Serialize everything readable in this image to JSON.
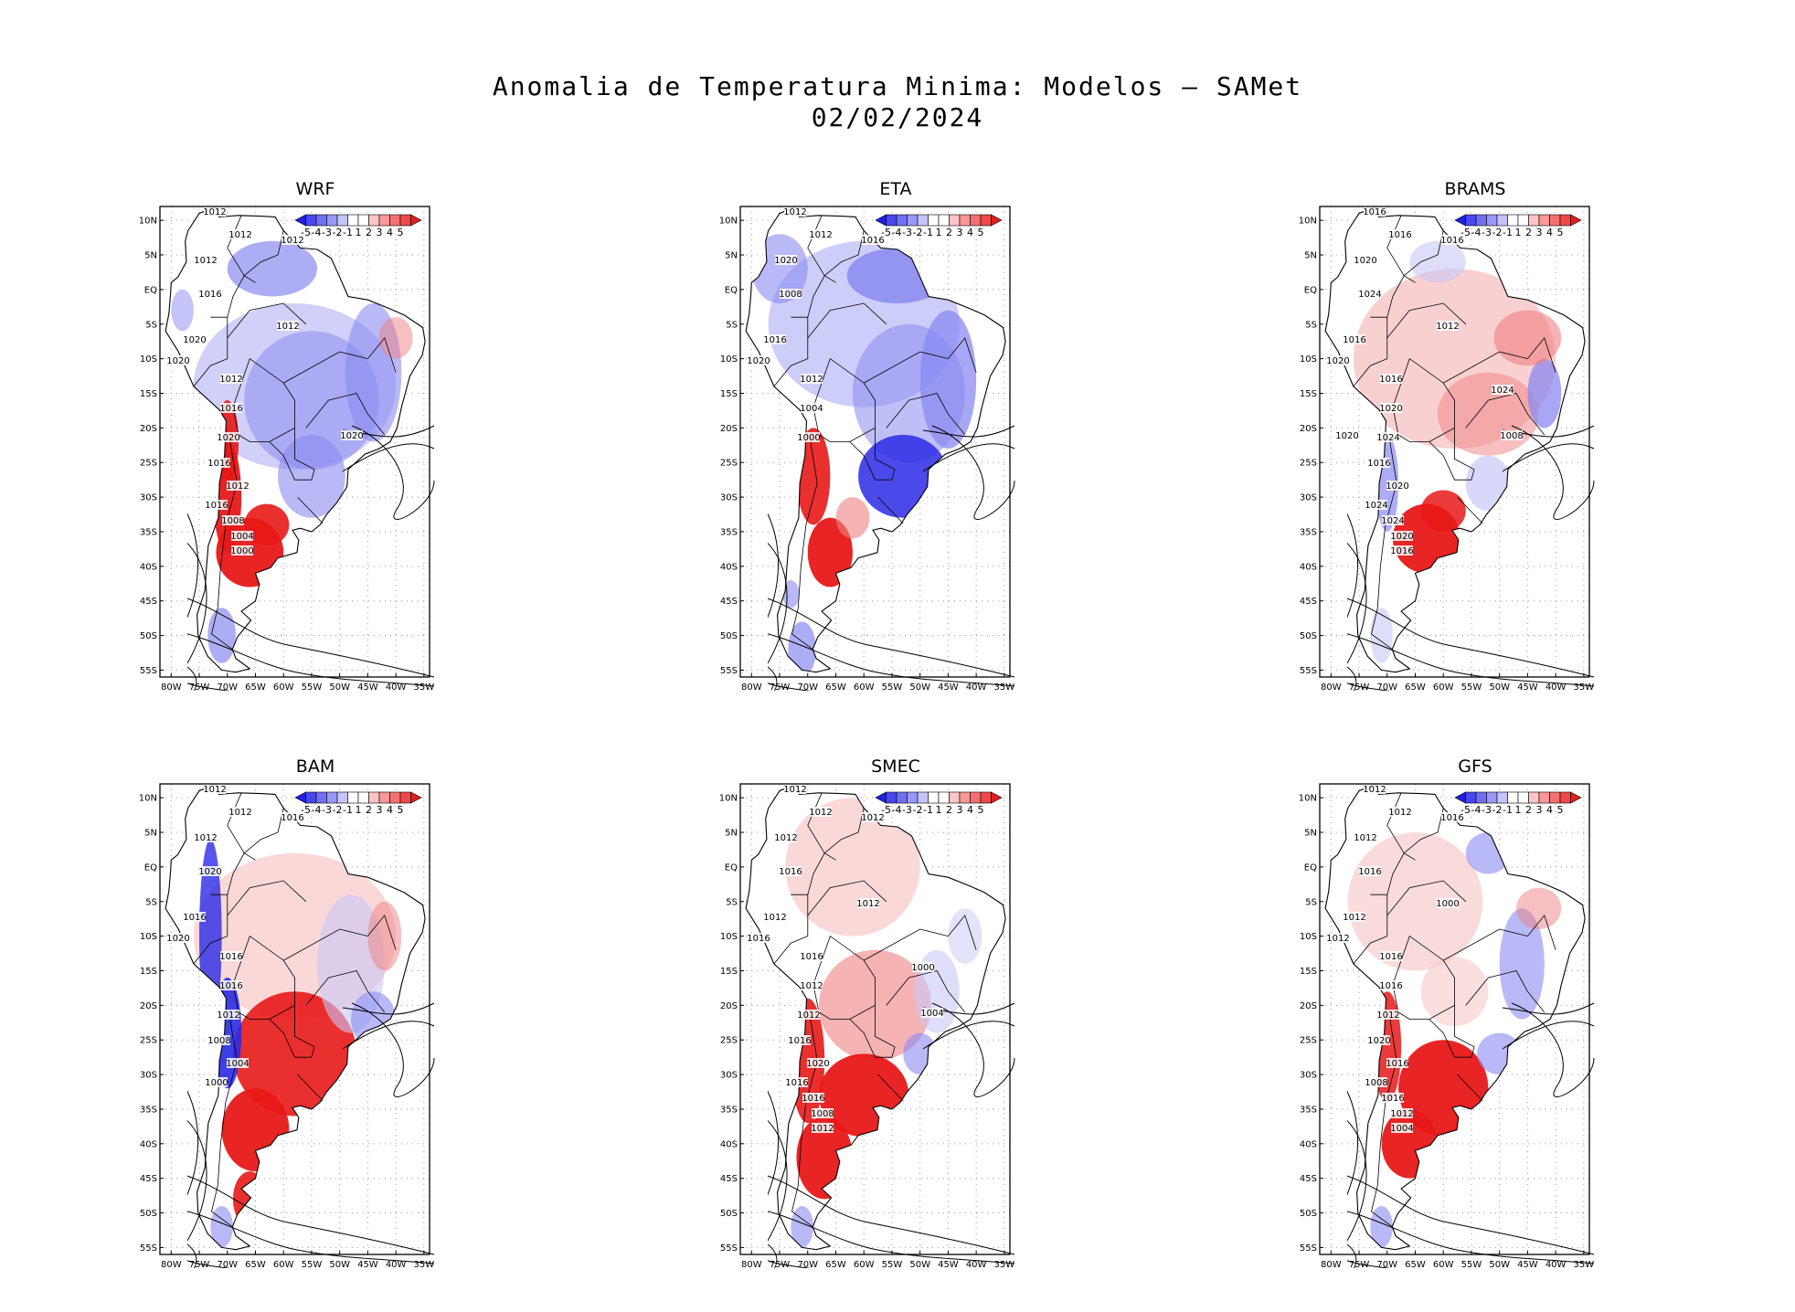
{
  "title": {
    "line1": "Anomalia de Temperatura Minima: Modelos — SAMet",
    "line2": "02/02/2024"
  },
  "colorbar": {
    "labels": [
      "-5",
      "-4",
      "-3",
      "-2",
      "-1",
      "1",
      "2",
      "3",
      "4",
      "5"
    ],
    "colors": [
      "#2020e0",
      "#4848f0",
      "#7070f5",
      "#9898f8",
      "#c4c4fb",
      "#ffffff",
      "#ffffff",
      "#fcc4c4",
      "#f89898",
      "#f57070",
      "#f04848",
      "#e02020"
    ]
  },
  "axes": {
    "lat_labels": [
      "10N",
      "5N",
      "EQ",
      "5S",
      "10S",
      "15S",
      "20S",
      "25S",
      "30S",
      "35S",
      "40S",
      "45S",
      "50S",
      "55S"
    ],
    "lon_labels": [
      "80W",
      "75W",
      "70W",
      "65W",
      "60W",
      "55W",
      "50W",
      "45W",
      "40W",
      "35W"
    ]
  },
  "palette": {
    "cold_strong": "#2a2ae6",
    "cold": "#8a8af2",
    "cold_light": "#c8c8f8",
    "warm_light": "#f8c8c8",
    "warm": "#f08080",
    "warm_strong": "#e81818",
    "line": "#000000"
  },
  "panels": [
    {
      "id": "wrf",
      "name": "WRF",
      "scheme": "cold",
      "isobars": [
        "1012",
        "1012",
        "1012",
        "1012",
        "1016",
        "1020",
        "1020",
        "1012",
        "1016",
        "1020",
        "1016",
        "1012",
        "1016",
        "1008",
        "1004",
        "1000",
        "1012",
        "1020"
      ]
    },
    {
      "id": "eta",
      "name": "ETA",
      "scheme": "cold2",
      "isobars": [
        "1012",
        "1012",
        "1016",
        "1020",
        "1008",
        "1016",
        "1020",
        "1012",
        "1004",
        "1000"
      ]
    },
    {
      "id": "brams",
      "name": "BRAMS",
      "scheme": "warm_mixed",
      "isobars": [
        "1016",
        "1016",
        "1016",
        "1020",
        "1024",
        "1016",
        "1020",
        "1016",
        "1020",
        "1024",
        "1016",
        "1020",
        "1024",
        "1024",
        "1020",
        "1016",
        "1012",
        "1008",
        "1024",
        "1020"
      ]
    },
    {
      "id": "bam",
      "name": "BAM",
      "scheme": "warm_andes",
      "isobars": [
        "1012",
        "1012",
        "1016",
        "1012",
        "1020",
        "1016",
        "1020",
        "1016",
        "1016",
        "1012",
        "1008",
        "1004",
        "1000"
      ]
    },
    {
      "id": "smec",
      "name": "SMEC",
      "scheme": "warm",
      "isobars": [
        "1012",
        "1012",
        "1012",
        "1012",
        "1016",
        "1012",
        "1016",
        "1016",
        "1012",
        "1012",
        "1016",
        "1020",
        "1016",
        "1016",
        "1008",
        "1012",
        "1012",
        "1004",
        "1000"
      ]
    },
    {
      "id": "gfs",
      "name": "GFS",
      "scheme": "warm2",
      "isobars": [
        "1012",
        "1012",
        "1016",
        "1012",
        "1016",
        "1012",
        "1012",
        "1016",
        "1016",
        "1012",
        "1020",
        "1016",
        "1008",
        "1016",
        "1012",
        "1004",
        "1000"
      ]
    }
  ]
}
